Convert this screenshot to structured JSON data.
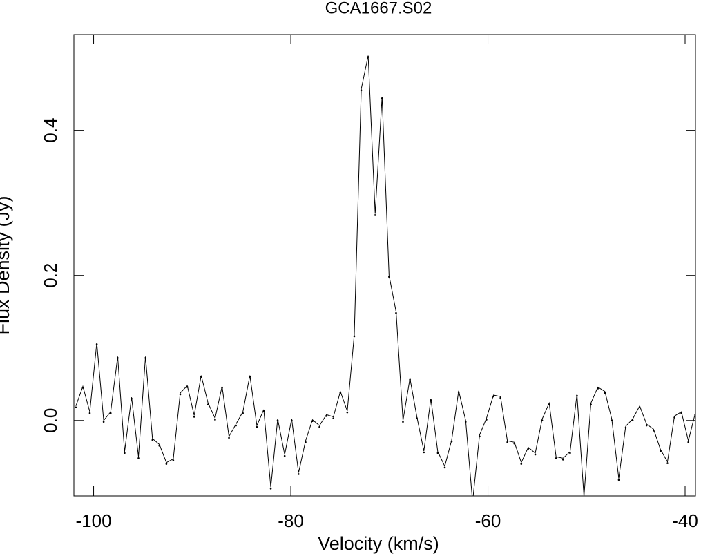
{
  "chart_data": {
    "type": "line",
    "title": "GCA1667.S02",
    "x_label": "Velocity (km/s)",
    "y_label": "Flux Density (Jy)",
    "x": [
      -101.8,
      -101.09,
      -100.39,
      -99.68,
      -98.98,
      -98.27,
      -97.56,
      -96.86,
      -96.15,
      -95.45,
      -94.74,
      -94.03,
      -93.33,
      -92.62,
      -91.92,
      -91.21,
      -90.5,
      -89.8,
      -89.09,
      -88.39,
      -87.68,
      -86.97,
      -86.27,
      -85.56,
      -84.86,
      -84.15,
      -83.44,
      -82.74,
      -82.03,
      -81.33,
      -80.62,
      -79.91,
      -79.21,
      -78.5,
      -77.8,
      -77.09,
      -76.38,
      -75.68,
      -74.97,
      -74.27,
      -73.56,
      -72.85,
      -72.15,
      -71.44,
      -70.74,
      -70.03,
      -69.32,
      -68.62,
      -67.91,
      -67.21,
      -66.5,
      -65.79,
      -65.09,
      -64.38,
      -63.68,
      -62.97,
      -62.26,
      -61.56,
      -60.85,
      -60.15,
      -59.44,
      -58.73,
      -58.03,
      -57.32,
      -56.62,
      -55.91,
      -55.2,
      -54.5,
      -53.79,
      -53.09,
      -52.38,
      -51.67,
      -50.97,
      -50.26,
      -49.56,
      -48.85,
      -48.14,
      -47.44,
      -46.73,
      -46.03,
      -45.32,
      -44.61,
      -43.91,
      -43.2,
      -42.5,
      -41.79,
      -41.08,
      -40.38,
      -39.67,
      -38.97
    ],
    "series": [
      {
        "color": "#000000",
        "values": [
          0.02,
          0.047,
          0.012,
          0.107,
          0.0,
          0.012,
          0.088,
          -0.043,
          0.032,
          -0.05,
          0.088,
          -0.025,
          -0.033,
          -0.058,
          -0.053,
          0.038,
          0.048,
          0.007,
          0.062,
          0.024,
          0.003,
          0.047,
          -0.022,
          -0.005,
          0.012,
          0.062,
          -0.007,
          0.015,
          -0.092,
          0.002,
          -0.047,
          0.002,
          -0.072,
          -0.028,
          0.001,
          -0.007,
          0.008,
          0.005,
          0.04,
          0.013,
          0.118,
          0.457,
          0.503,
          0.285,
          0.446,
          0.2,
          0.15,
          0.0,
          0.058,
          0.005,
          -0.042,
          0.03,
          -0.043,
          -0.063,
          -0.027,
          0.041,
          0.0,
          -0.112,
          -0.02,
          0.003,
          0.035,
          0.033,
          -0.028,
          -0.03,
          -0.058,
          -0.037,
          -0.045,
          0.002,
          0.024,
          -0.05,
          -0.052,
          -0.043,
          0.036,
          -0.105,
          0.024,
          0.046,
          0.04,
          0.002,
          -0.08,
          -0.008,
          0.002,
          0.02,
          -0.005,
          -0.012,
          -0.04,
          -0.057,
          0.006,
          0.012,
          -0.028,
          0.01
        ]
      }
    ],
    "xlim": [
      -102,
      -38.95
    ],
    "ylim": [
      -0.104,
      0.532
    ],
    "xticks": [
      -100,
      -80,
      -60,
      -40
    ],
    "yticks": [
      {
        "value": 0,
        "label": "0.0"
      },
      0.2,
      0.4
    ]
  }
}
